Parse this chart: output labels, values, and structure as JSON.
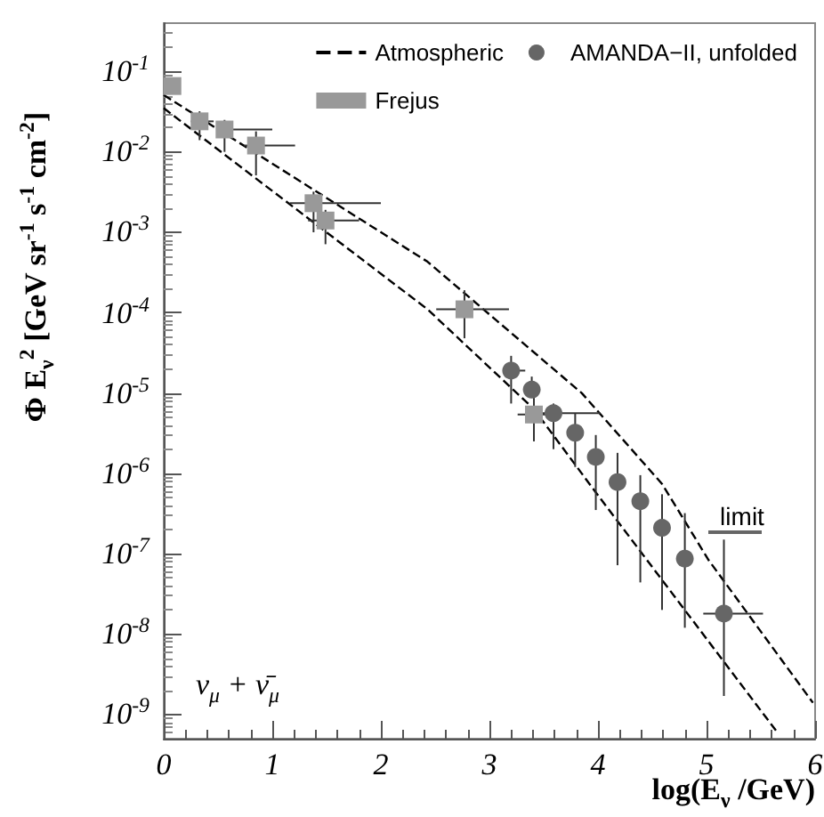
{
  "chart_data": {
    "type": "scatter",
    "xlabel": "log(E$_{ν}$ /GeV)",
    "ylabel": "Φ E$_{ν}$$^{2}$ [GeV sr$^{-1}$ s$^{-1}$ cm$^{-2}$]",
    "xlim": [
      0,
      6
    ],
    "xticks": [
      0,
      1,
      2,
      3,
      4,
      5,
      6
    ],
    "ylim": [
      5e-10,
      0.4
    ],
    "yticks": [
      {
        "value": 0.1,
        "label": "10$^{-1}$"
      },
      {
        "value": 0.01,
        "label": "10$^{-2}$"
      },
      {
        "value": 0.001,
        "label": "10$^{-3}$"
      },
      {
        "value": 0.0001,
        "label": "10$^{-4}$"
      },
      {
        "value": 1e-05,
        "label": "10$^{-5}$"
      },
      {
        "value": 1e-06,
        "label": "10$^{-6}$"
      },
      {
        "value": 1e-07,
        "label": "10$^{-7}$"
      },
      {
        "value": 1e-08,
        "label": "10$^{-8}$"
      },
      {
        "value": 1e-09,
        "label": "10$^{-9}$"
      }
    ],
    "log": "y",
    "grid": false,
    "legend": "top right",
    "annotations": [
      "limit",
      "ν$_{μ}$ + ν̄$_{μ}$"
    ],
    "series": [
      {
        "name": "Atmospheric",
        "type": "line",
        "color": "#000000",
        "line_style": "dashed",
        "marker": "none",
        "x": [
          0,
          2.43,
          3.85,
          4.59,
          5.02,
          5.98
        ],
        "values": [
          0.051,
          0.00043,
          1e-05,
          7.4e-07,
          8.3e-08,
          1.4e-09
        ]
      },
      {
        "type": "line",
        "color": "#000000",
        "line_style": "dashed",
        "marker": "none",
        "x": [
          0,
          2.43,
          3.41,
          3.98,
          5.66
        ],
        "values": [
          0.035,
          0.00011,
          6.3e-06,
          5.8e-07,
          5.8e-10
        ]
      },
      {
        "name": "AMANDA−II, unfolded",
        "type": "scatter",
        "color": "#666666",
        "marker": "circle",
        "x": [
          3.2,
          3.39,
          3.59,
          3.79,
          3.98,
          4.18,
          4.39,
          4.59,
          4.8,
          5.16
        ],
        "values": [
          1.9e-05,
          1.1e-05,
          5.6e-06,
          3.2e-06,
          1.6e-06,
          7.8e-07,
          4.5e-07,
          2.1e-07,
          8.7e-08,
          1.8e-08
        ],
        "errors": [
          [
            7.4e-06,
            2.9e-05
          ],
          [
            1.1e-05,
            1.6e-05
          ],
          [
            2e-06,
            7.4e-06
          ],
          [
            1.2e-06,
            5.6e-06
          ],
          [
            3.5e-07,
            3e-06
          ],
          [
            7.2e-08,
            1.8e-06
          ],
          [
            4.4e-08,
            9.5e-07
          ],
          [
            2e-08,
            5.5e-07
          ],
          [
            1.2e-08,
            3.2e-07
          ],
          [
            1.7e-09,
            1.5e-07
          ]
        ],
        "xerrors": [
          [
            3.13,
            3.33
          ],
          null,
          [
            3.49,
            4.02
          ],
          null,
          null,
          null,
          null,
          null,
          null,
          [
            4.97,
            5.52
          ]
        ]
      },
      {
        "name": "Frejus",
        "type": "scatter",
        "color": "#999999",
        "marker": "square",
        "x": [
          0.08,
          0.33,
          0.56,
          0.85,
          1.38,
          1.49,
          2.77,
          3.41
        ],
        "values": [
          0.066,
          0.024,
          0.019,
          0.012,
          0.0023,
          0.0014,
          0.00011,
          5.4e-06
        ],
        "errors": [
          null,
          [
            0.014,
            0.032
          ],
          [
            0.01,
            0.025
          ],
          [
            0.0051,
            0.018
          ],
          [
            0.001,
            0.0032
          ],
          [
            0.00071,
            0.0019
          ],
          [
            4.8e-05,
            0.00019
          ],
          [
            2.5e-06,
            8.9e-06
          ]
        ],
        "xerrors": [
          null,
          [
            0.25,
            0.46
          ],
          [
            0.49,
            1.0
          ],
          [
            0.74,
            1.21
          ],
          [
            1.16,
            2.0
          ],
          [
            1.33,
            1.8
          ],
          [
            2.51,
            3.18
          ],
          [
            3.26,
            3.59
          ]
        ]
      }
    ]
  }
}
